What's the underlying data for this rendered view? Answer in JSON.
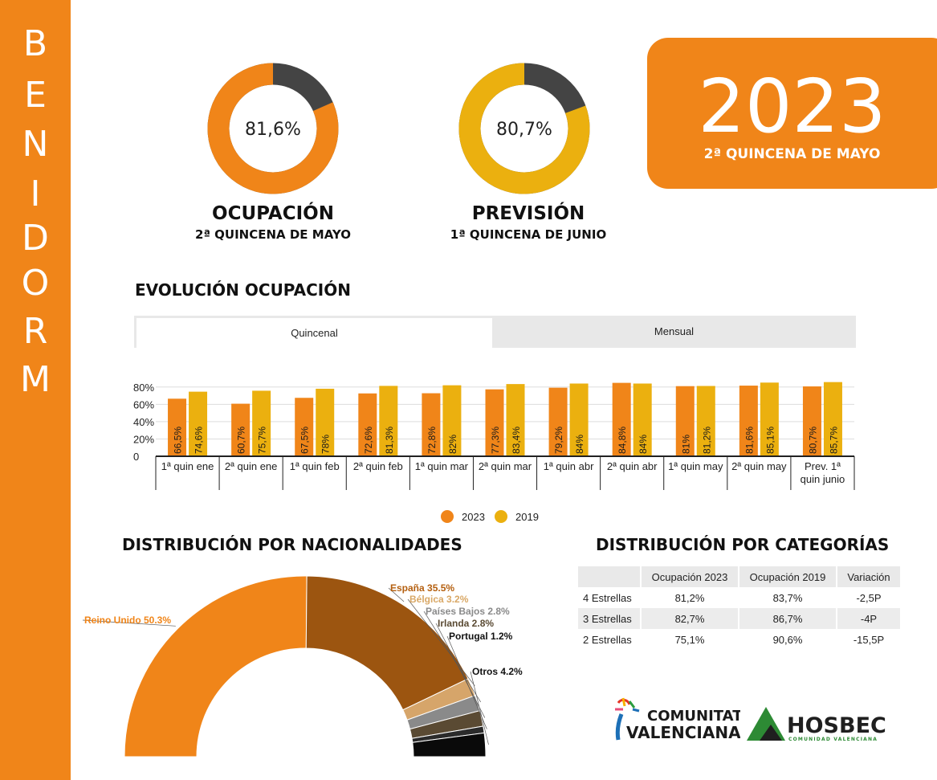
{
  "sidebar": {
    "letters": [
      "B",
      "E",
      "N",
      "I",
      "D",
      "O",
      "R",
      "M"
    ]
  },
  "year_box": {
    "year": "2023",
    "subtitle": "2ª QUINCENA DE MAYO"
  },
  "kpis": [
    {
      "value_text": "81,6%",
      "fraction": 0.816,
      "title": "OCUPACIÓN",
      "subtitle": "2ª QUINCENA DE MAYO",
      "color": "#f08519"
    },
    {
      "value_text": "80,7%",
      "fraction": 0.807,
      "title": "PREVISIÓN",
      "subtitle": "1ª QUINCENA DE JUNIO",
      "color": "#ebb00f"
    }
  ],
  "colors": {
    "orange": "#f08519",
    "gold": "#ebb00f",
    "dark": "#444444",
    "sidebar": "#f08519"
  },
  "evolucion": {
    "title": "EVOLUCIÓN OCUPACIÓN",
    "tabs": {
      "active": "Quincenal",
      "other": "Mensual"
    },
    "legend": [
      "2023",
      "2019"
    ]
  },
  "nacionalidades_title": "DISTRIBUCIÓN POR NACIONALIDADES",
  "categorias": {
    "title": "DISTRIBUCIÓN POR CATEGORÍAS",
    "headers": [
      "",
      "Ocupación 2023",
      "Ocupación 2019",
      "Variación"
    ],
    "rows": [
      [
        "4 Estrellas",
        "81,2%",
        "83,7%",
        "-2,5P"
      ],
      [
        "3 Estrellas",
        "82,7%",
        "86,7%",
        "-4P"
      ],
      [
        "2 Estrellas",
        "75,1%",
        "90,6%",
        "-15,5P"
      ]
    ]
  },
  "logos": {
    "comunitat_line1": "COMUNITAT",
    "comunitat_line2": "VALENCIANA",
    "hosbec": "HOSBEC",
    "hosbec_sub": "COMUNIDAD VALENCIANA"
  },
  "chart_data": [
    {
      "type": "bar",
      "categories": [
        "1ª quin ene",
        "2ª quin ene",
        "1ª quin feb",
        "2ª quin feb",
        "1ª quin mar",
        "2ª quin mar",
        "1ª quin abr",
        "2ª quin abr",
        "1ª quin may",
        "2ª quin may",
        "Prev. 1ª quin junio"
      ],
      "series": [
        {
          "name": "2023",
          "color": "#f08519",
          "values": [
            66.5,
            60.7,
            67.5,
            72.6,
            72.8,
            77.3,
            79.2,
            84.8,
            81,
            81.6,
            80.7
          ],
          "labels": [
            "66,5%",
            "60,7%",
            "67,5%",
            "72,6%",
            "72,8%",
            "77,3%",
            "79,2%",
            "84,8%",
            "81%",
            "81,6%",
            "80,7%"
          ]
        },
        {
          "name": "2019",
          "color": "#ebb00f",
          "values": [
            74.6,
            75.7,
            78,
            81.3,
            82,
            83.4,
            84,
            84,
            81.2,
            85.1,
            85.7
          ],
          "labels": [
            "74,6%",
            "75,7%",
            "78%",
            "81,3%",
            "82%",
            "83,4%",
            "84%",
            "84%",
            "81,2%",
            "85,1%",
            "85,7%"
          ]
        }
      ],
      "yticks": [
        "80%",
        "60%",
        "40%",
        "20%",
        "0"
      ],
      "ylim": [
        0,
        90
      ],
      "grid": true
    },
    {
      "type": "pie",
      "variant": "half-donut",
      "slices": [
        {
          "label": "Reino Unido 50.3%",
          "value": 50.3,
          "color": "#f08519",
          "label_color": "#f08519"
        },
        {
          "label": "España 35.5%",
          "value": 35.5,
          "color": "#9c5510",
          "label_color": "#b45f0f"
        },
        {
          "label": "Bélgica 3.2%",
          "value": 3.2,
          "color": "#d6a56a",
          "label_color": "#d9a866"
        },
        {
          "label": "Países Bajos 2.8%",
          "value": 2.8,
          "color": "#8a8a8a",
          "label_color": "#8a8a8a"
        },
        {
          "label": "Irlanda 2.8%",
          "value": 2.8,
          "color": "#5a4a33",
          "label_color": "#5a4a33"
        },
        {
          "label": "Portugal 1.2%",
          "value": 1.2,
          "color": "#2b2b2b",
          "label_color": "#111111"
        },
        {
          "label": "Otros 4.2%",
          "value": 4.2,
          "color": "#0a0a0a",
          "label_color": "#111111"
        }
      ]
    }
  ]
}
